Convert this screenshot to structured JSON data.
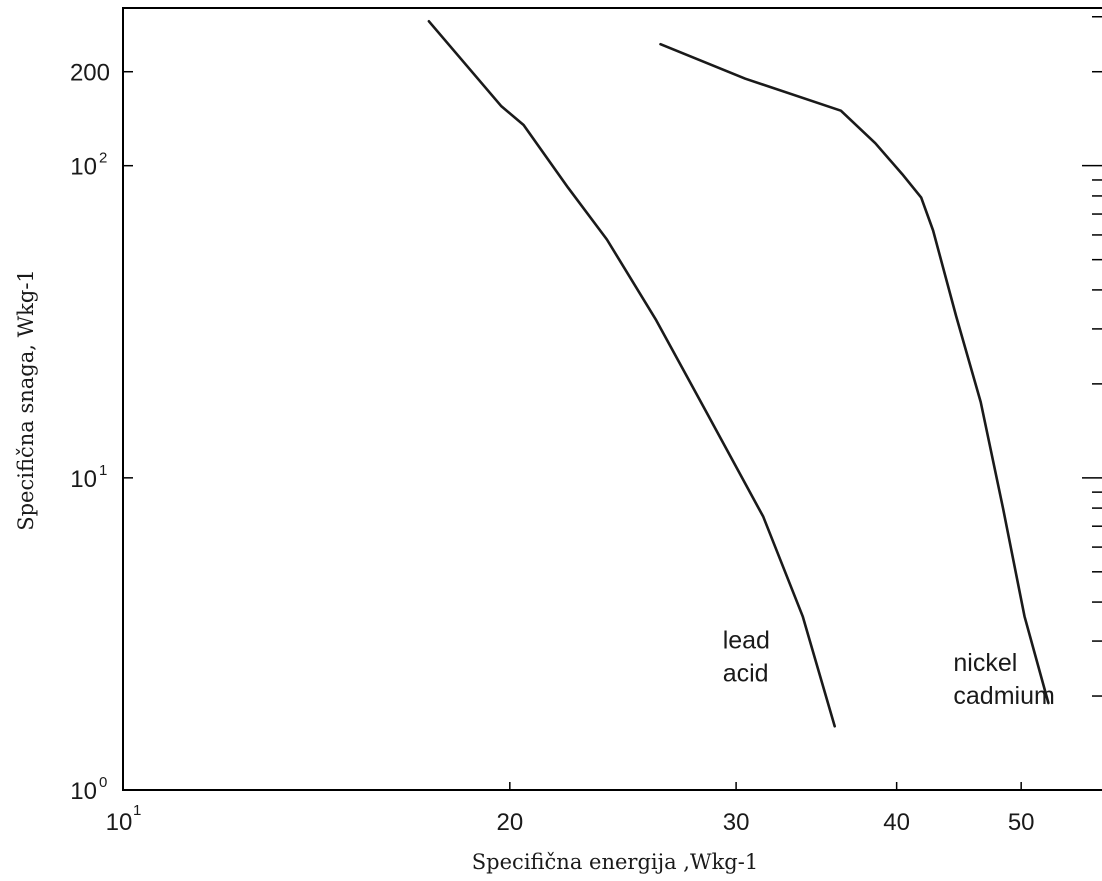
{
  "chart_data": {
    "type": "line",
    "xlabel": "Specifična energija ,Wkg-1",
    "ylabel": "Specifična snaga, Wkg-1",
    "x_scale": "log",
    "y_scale": "log",
    "xlim": [
      10,
      58
    ],
    "ylim": [
      1,
      320
    ],
    "grid": false,
    "x_ticks": [
      {
        "value": 10,
        "base": "10",
        "exp": "1"
      },
      {
        "value": 20,
        "base": "20",
        "exp": ""
      },
      {
        "value": 30,
        "base": "30",
        "exp": ""
      },
      {
        "value": 40,
        "base": "40",
        "exp": ""
      },
      {
        "value": 50,
        "base": "50",
        "exp": ""
      }
    ],
    "y_ticks": [
      {
        "value": 1,
        "base": "10",
        "exp": "0"
      },
      {
        "value": 10,
        "base": "10",
        "exp": "1"
      },
      {
        "value": 100,
        "base": "10",
        "exp": "2"
      },
      {
        "value": 200,
        "base": "200",
        "exp": ""
      }
    ],
    "series": [
      {
        "name": "lead acid",
        "x": [
          17.3,
          19.7,
          20.5,
          22.2,
          23.8,
          26.0,
          28.5,
          31.5,
          33.8,
          35.8
        ],
        "y": [
          290,
          155,
          135,
          85,
          58,
          32,
          16,
          7.5,
          3.6,
          1.6
        ]
      },
      {
        "name": "nickel cadmium",
        "x": [
          26.2,
          30.5,
          36.2,
          38.5,
          40.4,
          41.8,
          42.7,
          44.5,
          46.5,
          48.4,
          50.3,
          52.5
        ],
        "y": [
          245,
          190,
          150,
          118,
          94,
          79,
          62,
          33,
          17.5,
          8,
          3.6,
          1.9
        ]
      }
    ],
    "annotations": [
      {
        "lines": [
          "lead",
          "acid"
        ],
        "series": "lead acid"
      },
      {
        "lines": [
          "nickel",
          "cadmium"
        ],
        "series": "nickel cadmium"
      }
    ]
  }
}
